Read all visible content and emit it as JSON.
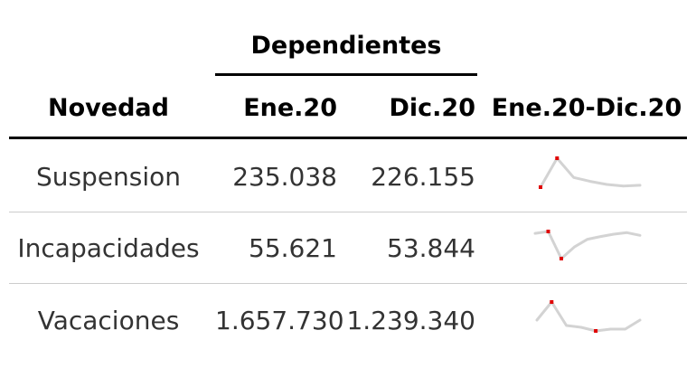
{
  "table": {
    "spanner": "Dependientes",
    "headers": {
      "novedad": "Novedad",
      "ene": "Ene.20",
      "dic": "Dic.20",
      "trend": "Ene.20-Dic.20"
    },
    "rows": [
      {
        "novedad": "Suspension",
        "ene": "235.038",
        "dic": "226.155",
        "sparkline": [
          5,
          80,
          30,
          20,
          12,
          8,
          10
        ]
      },
      {
        "novedad": "Incapacidades",
        "ene": "55.621",
        "dic": "53.844",
        "sparkline": [
          70,
          75,
          5,
          35,
          55,
          62,
          68,
          72,
          65
        ]
      },
      {
        "novedad": "Vacaciones",
        "ene": "1.657.730",
        "dic": "1.239.340",
        "sparkline": [
          30,
          80,
          15,
          10,
          0,
          5,
          5,
          30
        ]
      }
    ]
  },
  "colors": {
    "sparkline_line": "#d3d3d3",
    "sparkline_point": "#e00000",
    "rule_dark": "#000000",
    "rule_light": "#cccccc",
    "body_text": "#333333"
  }
}
